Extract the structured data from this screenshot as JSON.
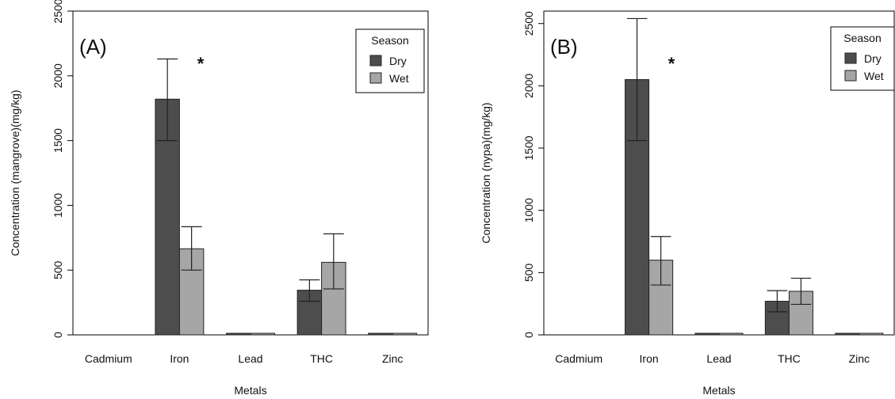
{
  "chart_data": [
    {
      "type": "bar",
      "panel_label": "(A)",
      "xlabel": "Metals",
      "ylabel": "Concentration (mangrove)(mg/kg)",
      "ylim": [
        0,
        2500
      ],
      "y_ticks": [
        0,
        500,
        1000,
        1500,
        2000,
        2500
      ],
      "categories": [
        "Cadmium",
        "Iron",
        "Lead",
        "THC",
        "Zinc"
      ],
      "series": [
        {
          "name": "Dry",
          "values": [
            0,
            1820,
            4,
            345,
            10
          ],
          "error_low": [
            0,
            1500,
            3,
            260,
            8
          ],
          "error_high": [
            0,
            2130,
            5,
            425,
            12
          ]
        },
        {
          "name": "Wet",
          "values": [
            0,
            665,
            5,
            560,
            11
          ],
          "error_low": [
            0,
            500,
            4,
            355,
            9
          ],
          "error_high": [
            0,
            835,
            6,
            780,
            13
          ]
        }
      ],
      "legend": {
        "title": "Season",
        "position": "top-right"
      },
      "annotations": [
        {
          "category": "Iron",
          "text": "*"
        }
      ],
      "grid": false
    },
    {
      "type": "bar",
      "panel_label": "(B)",
      "xlabel": "Metals",
      "ylabel": "Concentration (nypa)(mg/kg)",
      "ylim": [
        0,
        2600
      ],
      "y_ticks": [
        0,
        500,
        1000,
        1500,
        2000,
        2500
      ],
      "categories": [
        "Cadmium",
        "Iron",
        "Lead",
        "THC",
        "Zinc"
      ],
      "series": [
        {
          "name": "Dry",
          "values": [
            0,
            2050,
            3,
            270,
            10
          ],
          "error_low": [
            0,
            1560,
            2,
            185,
            8
          ],
          "error_high": [
            0,
            2540,
            4,
            355,
            12
          ]
        },
        {
          "name": "Wet",
          "values": [
            0,
            600,
            4,
            350,
            11
          ],
          "error_low": [
            0,
            400,
            3,
            245,
            9
          ],
          "error_high": [
            0,
            790,
            5,
            455,
            13
          ]
        }
      ],
      "legend": {
        "title": "Season",
        "position": "top-right"
      },
      "annotations": [
        {
          "category": "Iron",
          "text": "*"
        }
      ],
      "grid": false
    }
  ],
  "colors": {
    "dry": "#4d4d4d",
    "wet": "#a6a6a6",
    "axis": "#000000"
  }
}
